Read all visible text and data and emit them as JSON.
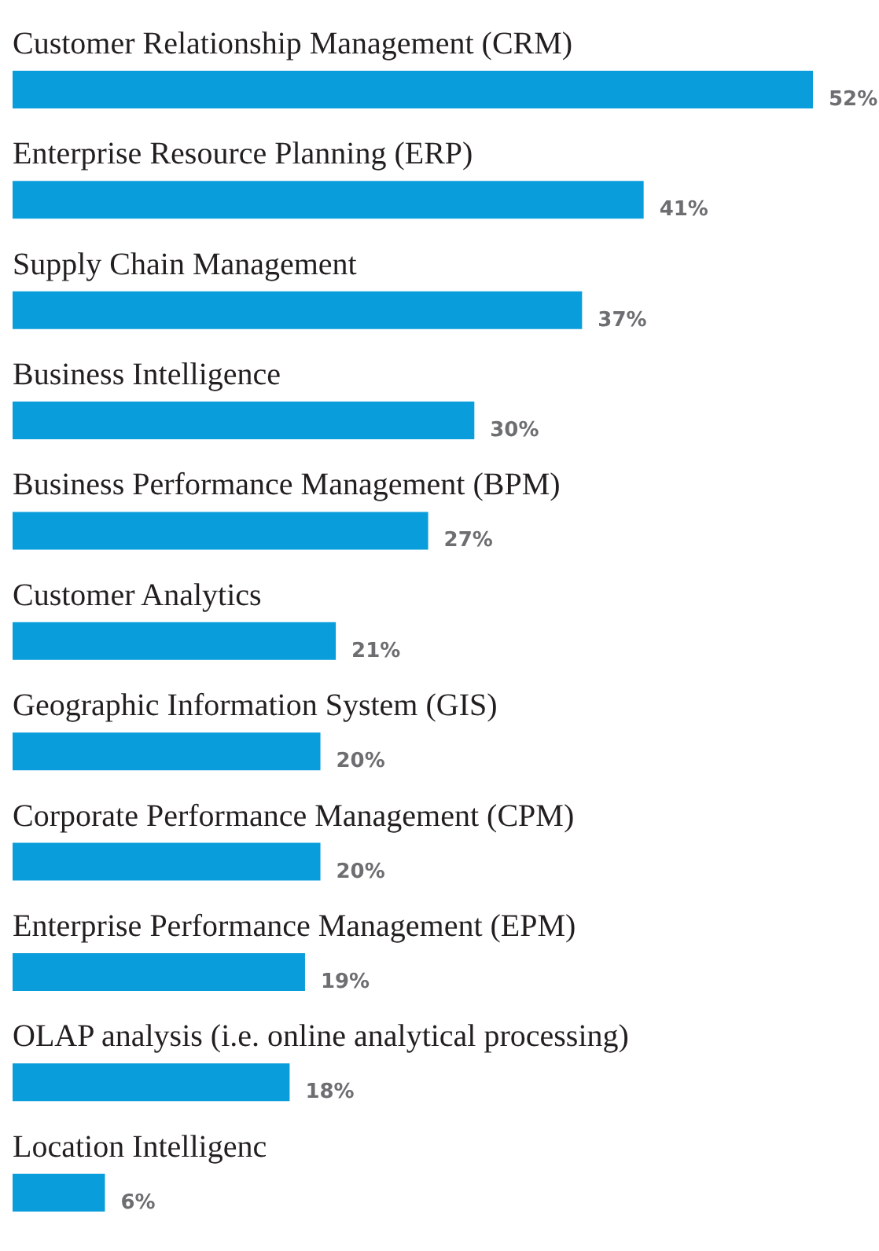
{
  "chart_data": {
    "type": "bar",
    "orientation": "horizontal",
    "categories": [
      "Customer Relationship Management (CRM)",
      "Enterprise Resource Planning (ERP)",
      "Supply Chain Management",
      "Business Intelligence",
      "Business Performance Management (BPM)",
      "Customer Analytics",
      "Geographic Information System (GIS)",
      "Corporate Performance Management (CPM)",
      "Enterprise Performance Management (EPM)",
      "OLAP analysis (i.e. online analytical processing)",
      "Location Intelligenc"
    ],
    "values": [
      52,
      41,
      37,
      30,
      27,
      21,
      20,
      20,
      19,
      18,
      6
    ],
    "value_labels": [
      "52%",
      "41%",
      "37%",
      "30%",
      "27%",
      "21%",
      "20%",
      "20%",
      "19%",
      "18%",
      "6%"
    ],
    "color": "#0a9ddb",
    "grid": false,
    "legend": false,
    "tick_labels": false
  }
}
